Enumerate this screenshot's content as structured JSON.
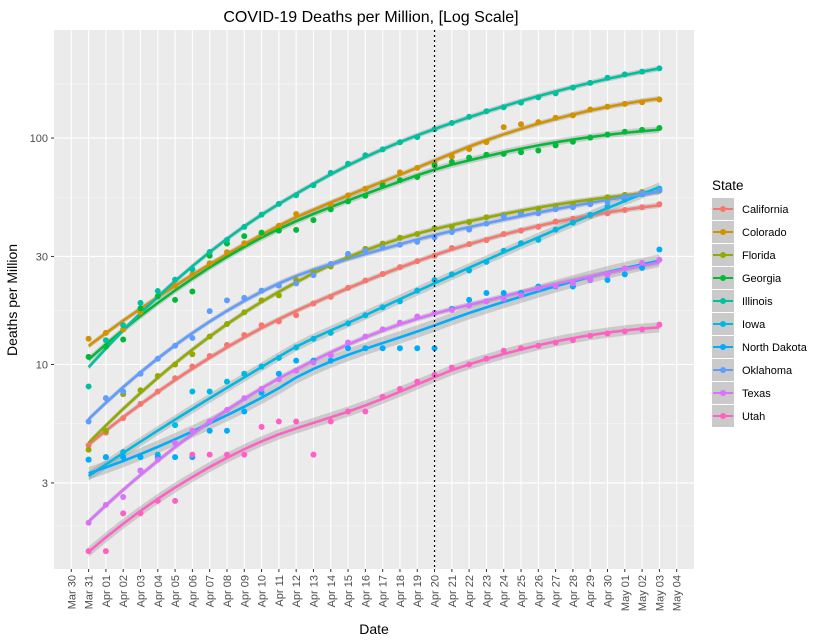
{
  "chart_data": {
    "type": "scatter",
    "title": "COVID-19 Deaths per Million, [Log Scale]",
    "xlabel": "Date",
    "ylabel": "Deaths per Million",
    "y_scale": "log10",
    "ylim": [
      1.25,
      300
    ],
    "xlim": [
      "2020-03-29",
      "2020-05-05"
    ],
    "y_ticks": [
      3,
      10,
      30,
      100
    ],
    "x_ticks": [
      "2020-03-30",
      "2020-03-31",
      "2020-04-01",
      "2020-04-02",
      "2020-04-03",
      "2020-04-04",
      "2020-04-05",
      "2020-04-06",
      "2020-04-07",
      "2020-04-08",
      "2020-04-09",
      "2020-04-10",
      "2020-04-11",
      "2020-04-12",
      "2020-04-13",
      "2020-04-14",
      "2020-04-15",
      "2020-04-16",
      "2020-04-17",
      "2020-04-18",
      "2020-04-19",
      "2020-04-20",
      "2020-04-21",
      "2020-04-22",
      "2020-04-23",
      "2020-04-24",
      "2020-04-25",
      "2020-04-26",
      "2020-04-27",
      "2020-04-28",
      "2020-04-29",
      "2020-04-30",
      "2020-05-01",
      "2020-05-02",
      "2020-05-03",
      "2020-05-04"
    ],
    "x_tick_labels": [
      "Mar 30",
      "Mar 31",
      "Apr 01",
      "Apr 02",
      "Apr 03",
      "Apr 04",
      "Apr 05",
      "Apr 06",
      "Apr 07",
      "Apr 08",
      "Apr 09",
      "Apr 10",
      "Apr 11",
      "Apr 12",
      "Apr 13",
      "Apr 14",
      "Apr 15",
      "Apr 16",
      "Apr 17",
      "Apr 18",
      "Apr 19",
      "Apr 20",
      "Apr 21",
      "Apr 22",
      "Apr 23",
      "Apr 24",
      "Apr 25",
      "Apr 26",
      "Apr 27",
      "Apr 28",
      "Apr 29",
      "Apr 30",
      "May 01",
      "May 02",
      "May 03",
      "May 04"
    ],
    "vline": "2020-04-20",
    "grid": true,
    "smoothing": "loess with confidence band",
    "legend": {
      "title": "State",
      "position": "right"
    },
    "x": [
      "2020-03-31",
      "2020-04-01",
      "2020-04-02",
      "2020-04-03",
      "2020-04-04",
      "2020-04-05",
      "2020-04-06",
      "2020-04-07",
      "2020-04-08",
      "2020-04-09",
      "2020-04-10",
      "2020-04-11",
      "2020-04-12",
      "2020-04-13",
      "2020-04-14",
      "2020-04-15",
      "2020-04-16",
      "2020-04-17",
      "2020-04-18",
      "2020-04-19",
      "2020-04-20",
      "2020-04-21",
      "2020-04-22",
      "2020-04-23",
      "2020-04-24",
      "2020-04-25",
      "2020-04-26",
      "2020-04-27",
      "2020-04-28",
      "2020-04-29",
      "2020-04-30",
      "2020-05-01",
      "2020-05-02",
      "2020-05-03"
    ],
    "series": [
      {
        "name": "California",
        "color": "#F8766D",
        "values": [
          4.4,
          5.0,
          5.8,
          6.7,
          7.6,
          8.7,
          9.8,
          10.9,
          12.2,
          13.5,
          14.9,
          15.5,
          16.5,
          18.6,
          19.9,
          21.8,
          23.5,
          25.1,
          26.9,
          28.6,
          30.2,
          32.7,
          34.0,
          35.4,
          37.7,
          39.0,
          40.5,
          42.8,
          44.0,
          45.3,
          46.5,
          48.1,
          49.5,
          51.0
        ]
      },
      {
        "name": "Colorado",
        "color": "#D39200",
        "values": [
          13.0,
          13.8,
          14.3,
          17.0,
          null,
          22.3,
          25.0,
          28.0,
          31.3,
          34.3,
          37.7,
          41.0,
          46.2,
          null,
          50.9,
          55.8,
          59.7,
          63.4,
          70.5,
          73.8,
          77.7,
          82.8,
          89.4,
          95.9,
          111.8,
          115.0,
          117.5,
          122.9,
          125.9,
          133.6,
          137.7,
          141.6,
          143.9,
          148.0
        ]
      },
      {
        "name": "Florida",
        "color": "#93AA00",
        "values": [
          4.2,
          5.1,
          7.4,
          7.7,
          8.9,
          10.0,
          11.1,
          13.3,
          15.1,
          17.0,
          19.2,
          20.2,
          23.6,
          25.5,
          27.1,
          30.0,
          32.4,
          34.2,
          36.3,
          37.7,
          40.0,
          40.5,
          42.6,
          44.7,
          45.7,
          46.8,
          48.7,
          50.1,
          51.2,
          52.5,
          54.8,
          56.1,
          57.8,
          58.5
        ]
      },
      {
        "name": "Georgia",
        "color": "#00BA38",
        "values": [
          10.8,
          12.0,
          12.9,
          17.7,
          20.0,
          19.3,
          21.0,
          30.2,
          34.2,
          36.9,
          38.2,
          39.0,
          39.3,
          43.4,
          48.4,
          52.5,
          55.6,
          61.7,
          65.2,
          67.3,
          75.8,
          78.4,
          81.9,
          84.4,
          85.1,
          86.6,
          88.1,
          92.8,
          96.3,
          100.4,
          103.7,
          106.6,
          108.6,
          110.8
        ]
      },
      {
        "name": "Illinois",
        "color": "#00C19F",
        "values": [
          8.0,
          12.8,
          14.9,
          18.7,
          21.1,
          23.7,
          26.3,
          31.4,
          35.5,
          40.5,
          45.9,
          51.2,
          55.9,
          61.9,
          70.2,
          77.0,
          84.0,
          89.1,
          95.8,
          101.0,
          109.3,
          116.6,
          124.1,
          131.4,
          136.8,
          143.3,
          151.3,
          157.5,
          167.0,
          175.2,
          184.6,
          191.1,
          196.4,
          203.2
        ]
      },
      {
        "name": "Iowa",
        "color": "#00B9E3",
        "values": [
          3.8,
          3.9,
          4.1,
          3.4,
          4.0,
          5.4,
          7.6,
          7.6,
          8.4,
          9.1,
          9.8,
          10.7,
          11.9,
          13.0,
          13.8,
          15.2,
          16.5,
          17.9,
          19.0,
          21.2,
          23.6,
          25.0,
          26.0,
          28.4,
          31.8,
          34.3,
          35.5,
          39.4,
          42.3,
          45.8,
          49.7,
          53.4,
          56.6,
          59.8
        ]
      },
      {
        "name": "North Dakota",
        "color": "#00ADFA",
        "values": [
          3.8,
          3.9,
          3.9,
          3.9,
          3.9,
          3.9,
          3.9,
          5.1,
          5.1,
          6.2,
          7.5,
          9.1,
          10.4,
          10.4,
          10.4,
          11.8,
          11.8,
          11.8,
          11.8,
          11.8,
          11.8,
          17.6,
          19.3,
          20.7,
          20.7,
          20.7,
          22.1,
          22.1,
          22.1,
          23.6,
          23.6,
          25.0,
          26.7,
          32.2
        ]
      },
      {
        "name": "Oklahoma",
        "color": "#619CFF",
        "values": [
          5.6,
          7.1,
          7.6,
          9.1,
          10.6,
          12.1,
          13.1,
          17.2,
          19.2,
          19.7,
          21.2,
          22.3,
          22.8,
          24.8,
          27.8,
          30.8,
          31.8,
          32.8,
          33.8,
          34.8,
          36.4,
          38.4,
          39.4,
          41.9,
          45.0,
          46.0,
          46.5,
          48.5,
          49.5,
          51.0,
          52.0,
          55.1,
          57.1,
          58.7
        ]
      },
      {
        "name": "Texas",
        "color": "#DB72FB",
        "values": [
          2.0,
          2.4,
          2.6,
          3.4,
          3.8,
          4.5,
          5.1,
          5.6,
          6.3,
          7.1,
          7.8,
          8.6,
          9.4,
          10.2,
          11.0,
          12.5,
          13.3,
          14.3,
          15.3,
          16.3,
          16.9,
          17.4,
          18.2,
          19.0,
          19.5,
          20.2,
          21.7,
          22.2,
          22.8,
          23.7,
          24.9,
          26.6,
          28.1,
          29.0
        ]
      },
      {
        "name": "Utah",
        "color": "#FF61C3",
        "values": [
          1.5,
          1.5,
          2.2,
          2.2,
          2.5,
          2.5,
          4.0,
          4.0,
          4.0,
          4.0,
          5.3,
          5.6,
          5.6,
          4.0,
          5.6,
          6.2,
          6.2,
          7.2,
          7.8,
          8.4,
          9.0,
          9.7,
          10.0,
          10.6,
          11.5,
          11.8,
          12.1,
          12.5,
          12.8,
          13.4,
          13.7,
          14.0,
          14.3,
          15.0
        ]
      }
    ]
  }
}
